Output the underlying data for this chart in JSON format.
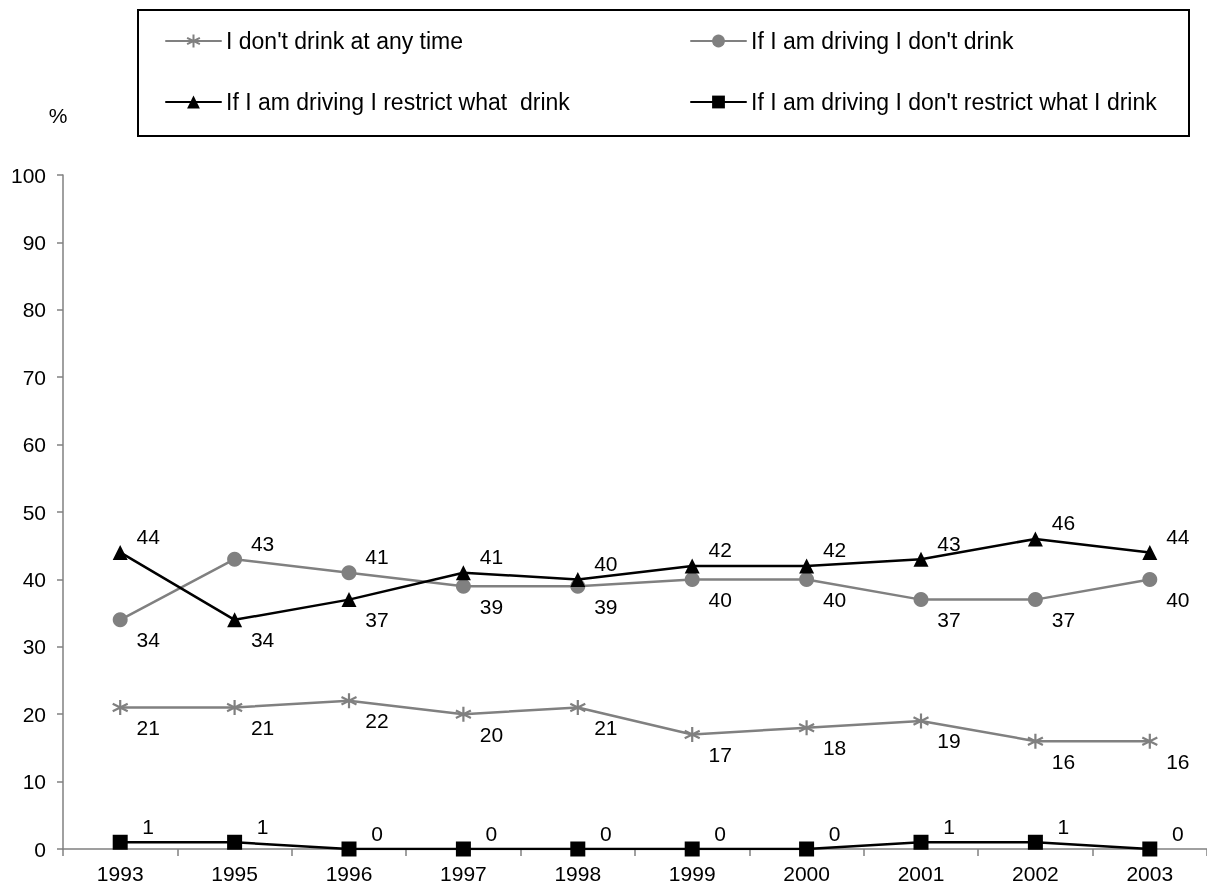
{
  "chart_data": {
    "type": "line",
    "ylabel": "%",
    "categories": [
      "1993",
      "1995",
      "1996",
      "1997",
      "1998",
      "1999",
      "2000",
      "2001",
      "2002",
      "2003"
    ],
    "series": [
      {
        "name": "I don't drink at any time",
        "color": "#808080",
        "marker": "cross",
        "values": [
          21,
          21,
          22,
          20,
          21,
          17,
          18,
          19,
          16,
          16
        ]
      },
      {
        "name": "If I am driving I don't drink",
        "color": "#808080",
        "marker": "circle",
        "values": [
          34,
          43,
          41,
          39,
          39,
          40,
          40,
          37,
          37,
          40
        ]
      },
      {
        "name": "If I am driving I restrict what  drink",
        "color": "#000000",
        "marker": "triangle",
        "values": [
          44,
          34,
          37,
          41,
          40,
          42,
          42,
          43,
          46,
          44
        ]
      },
      {
        "name": "If I am driving I don't restrict what I drink",
        "color": "#000000",
        "marker": "square",
        "values": [
          1,
          1,
          0,
          0,
          0,
          0,
          0,
          1,
          1,
          0
        ]
      }
    ],
    "ylim": [
      0,
      100
    ],
    "yticks": [
      0,
      10,
      20,
      30,
      40,
      50,
      60,
      70,
      80,
      90,
      100
    ],
    "data_labels": true,
    "legend": "top"
  }
}
